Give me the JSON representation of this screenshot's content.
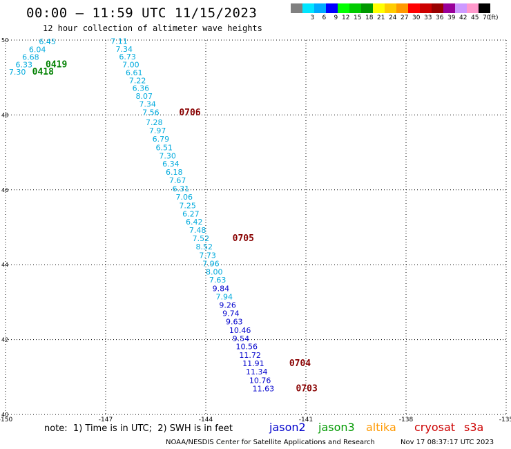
{
  "title": "00:00 – 11:59 UTC 11/15/2023",
  "subtitle": "12 hour collection of altimeter wave heights",
  "legend": {
    "unit": "(ft)",
    "entries": [
      {
        "label": "",
        "color": "#808080"
      },
      {
        "label": "3",
        "color": "#00e5ff"
      },
      {
        "label": "6",
        "color": "#00aaff"
      },
      {
        "label": "9",
        "color": "#0000ff"
      },
      {
        "label": "12",
        "color": "#00ff00"
      },
      {
        "label": "15",
        "color": "#00cc00"
      },
      {
        "label": "18",
        "color": "#009900"
      },
      {
        "label": "21",
        "color": "#ffff00"
      },
      {
        "label": "24",
        "color": "#ffcc00"
      },
      {
        "label": "27",
        "color": "#ff9900"
      },
      {
        "label": "30",
        "color": "#ff0000"
      },
      {
        "label": "33",
        "color": "#cc0000"
      },
      {
        "label": "36",
        "color": "#990000"
      },
      {
        "label": "39",
        "color": "#990099"
      },
      {
        "label": "42",
        "color": "#cc99ff"
      },
      {
        "label": "45",
        "color": "#ff99cc"
      },
      {
        "label": "70",
        "color": "#000000"
      }
    ]
  },
  "axes": {
    "lon_labels": [
      "-150",
      "-147",
      "-144",
      "-141",
      "-138",
      "-135"
    ],
    "lat_labels": [
      "50",
      "48",
      "46",
      "44",
      "42",
      "40"
    ]
  },
  "colors": {
    "jason3": "#00aadd",
    "jason2": "#0000cc",
    "time_track": "#880000",
    "time_green": "#008000"
  },
  "chart_data": {
    "type": "scatter",
    "x_range": [
      -150,
      -135
    ],
    "y_range": [
      40,
      50
    ],
    "tracks": [
      {
        "name": "main",
        "points": [
          {
            "lon": -146.85,
            "lat": 49.9,
            "swh": "7.11",
            "color": "#00aadd"
          },
          {
            "lon": -146.7,
            "lat": 49.69,
            "swh": "7.34",
            "color": "#00aadd"
          },
          {
            "lon": -146.6,
            "lat": 49.48,
            "swh": "6.73",
            "color": "#00aadd"
          },
          {
            "lon": -146.5,
            "lat": 49.27,
            "swh": "7.00",
            "color": "#00aadd"
          },
          {
            "lon": -146.4,
            "lat": 49.06,
            "swh": "6.61",
            "color": "#00aadd"
          },
          {
            "lon": -146.3,
            "lat": 48.85,
            "swh": "7.22",
            "color": "#00aadd"
          },
          {
            "lon": -146.2,
            "lat": 48.64,
            "swh": "6.36",
            "color": "#00aadd"
          },
          {
            "lon": -146.1,
            "lat": 48.43,
            "swh": "8.07",
            "color": "#00aadd"
          },
          {
            "lon": -146.0,
            "lat": 48.22,
            "swh": "7.34",
            "color": "#00aadd"
          },
          {
            "lon": -145.9,
            "lat": 48.0,
            "swh": "7.56",
            "color": "#00aadd"
          },
          {
            "lon": -145.8,
            "lat": 47.73,
            "swh": "7.28",
            "color": "#00aadd"
          },
          {
            "lon": -145.7,
            "lat": 47.51,
            "swh": "7.97",
            "color": "#00aadd"
          },
          {
            "lon": -145.6,
            "lat": 47.29,
            "swh": "6.79",
            "color": "#00aadd"
          },
          {
            "lon": -145.5,
            "lat": 47.06,
            "swh": "6.51",
            "color": "#00aadd"
          },
          {
            "lon": -145.4,
            "lat": 46.84,
            "swh": "7.30",
            "color": "#00aadd"
          },
          {
            "lon": -145.3,
            "lat": 46.62,
            "swh": "6.34",
            "color": "#00aadd"
          },
          {
            "lon": -145.2,
            "lat": 46.4,
            "swh": "6.18",
            "color": "#00aadd"
          },
          {
            "lon": -145.1,
            "lat": 46.18,
            "swh": "7.67",
            "color": "#00aadd"
          },
          {
            "lon": -145.0,
            "lat": 45.96,
            "swh": "6.31",
            "color": "#00aadd"
          },
          {
            "lon": -144.9,
            "lat": 45.74,
            "swh": "7.06",
            "color": "#00aadd"
          },
          {
            "lon": -144.8,
            "lat": 45.51,
            "swh": "7.25",
            "color": "#00aadd"
          },
          {
            "lon": -144.7,
            "lat": 45.29,
            "swh": "6.27",
            "color": "#00aadd"
          },
          {
            "lon": -144.6,
            "lat": 45.07,
            "swh": "6.42",
            "color": "#00aadd"
          },
          {
            "lon": -144.5,
            "lat": 44.85,
            "swh": "7.48",
            "color": "#00aadd"
          },
          {
            "lon": -144.4,
            "lat": 44.63,
            "swh": "7.52",
            "color": "#00aadd"
          },
          {
            "lon": -144.3,
            "lat": 44.41,
            "swh": "8.52",
            "color": "#00aadd"
          },
          {
            "lon": -144.2,
            "lat": 44.18,
            "swh": "7.73",
            "color": "#00aadd"
          },
          {
            "lon": -144.1,
            "lat": 43.96,
            "swh": "7.96",
            "color": "#00aadd"
          },
          {
            "lon": -144.0,
            "lat": 43.74,
            "swh": "8.00",
            "color": "#00aadd"
          },
          {
            "lon": -143.9,
            "lat": 43.52,
            "swh": "7.63",
            "color": "#00aadd"
          },
          {
            "lon": -143.8,
            "lat": 43.29,
            "swh": "9.84",
            "color": "#0000cc"
          },
          {
            "lon": -143.7,
            "lat": 43.07,
            "swh": "7.94",
            "color": "#00aadd"
          },
          {
            "lon": -143.6,
            "lat": 42.85,
            "swh": "9.26",
            "color": "#0000cc"
          },
          {
            "lon": -143.5,
            "lat": 42.63,
            "swh": "9.74",
            "color": "#0000cc"
          },
          {
            "lon": -143.4,
            "lat": 42.41,
            "swh": "9.63",
            "color": "#0000cc"
          },
          {
            "lon": -143.3,
            "lat": 42.18,
            "swh": "10.46",
            "color": "#0000cc"
          },
          {
            "lon": -143.2,
            "lat": 41.96,
            "swh": "9.54",
            "color": "#0000cc"
          },
          {
            "lon": -143.1,
            "lat": 41.74,
            "swh": "10.56",
            "color": "#0000cc"
          },
          {
            "lon": -143.0,
            "lat": 41.51,
            "swh": "11.72",
            "color": "#0000cc"
          },
          {
            "lon": -142.9,
            "lat": 41.29,
            "swh": "11.91",
            "color": "#0000cc"
          },
          {
            "lon": -142.8,
            "lat": 41.07,
            "swh": "11.34",
            "color": "#0000cc"
          },
          {
            "lon": -142.7,
            "lat": 40.84,
            "swh": "10.76",
            "color": "#0000cc"
          },
          {
            "lon": -142.6,
            "lat": 40.62,
            "swh": "11.63",
            "color": "#0000cc"
          }
        ]
      },
      {
        "name": "corner",
        "points": [
          {
            "lon": -149.0,
            "lat": 49.89,
            "swh": "6.45",
            "color": "#00aadd"
          },
          {
            "lon": -149.3,
            "lat": 49.68,
            "swh": "6.04",
            "color": "#00aadd"
          },
          {
            "lon": -149.5,
            "lat": 49.47,
            "swh": "6.68",
            "color": "#00aadd"
          },
          {
            "lon": -149.7,
            "lat": 49.27,
            "swh": "6.33",
            "color": "#00aadd"
          },
          {
            "lon": -149.9,
            "lat": 49.08,
            "swh": "7.30",
            "color": "#00aadd"
          }
        ]
      }
    ],
    "time_labels": [
      {
        "text": "0419",
        "lon": -148.8,
        "lat": 49.27,
        "color": "#008000"
      },
      {
        "text": "0418",
        "lon": -149.2,
        "lat": 49.08,
        "color": "#008000"
      },
      {
        "text": "0706",
        "lon": -144.8,
        "lat": 47.99,
        "color": "#880000"
      },
      {
        "text": "0705",
        "lon": -143.2,
        "lat": 44.63,
        "color": "#880000"
      },
      {
        "text": "0704",
        "lon": -141.5,
        "lat": 41.29,
        "color": "#880000"
      },
      {
        "text": "0703",
        "lon": -141.3,
        "lat": 40.62,
        "color": "#880000"
      }
    ]
  },
  "note": "note:  1) Time is in UTC;  2) SWH is in feet",
  "satellites": [
    {
      "name": "jason2",
      "color": "#0000cc"
    },
    {
      "name": "jason3",
      "color": "#009900"
    },
    {
      "name": "altika",
      "color": "#ff9900"
    },
    {
      "name": "cryosat",
      "color": "#cc0000"
    },
    {
      "name": "s3a",
      "color": "#cc0000"
    }
  ],
  "footer": "NOAA/NESDIS Center for Satellite Applications and Research",
  "footer_time": "Nov 17 08:37:17 UTC 2023"
}
